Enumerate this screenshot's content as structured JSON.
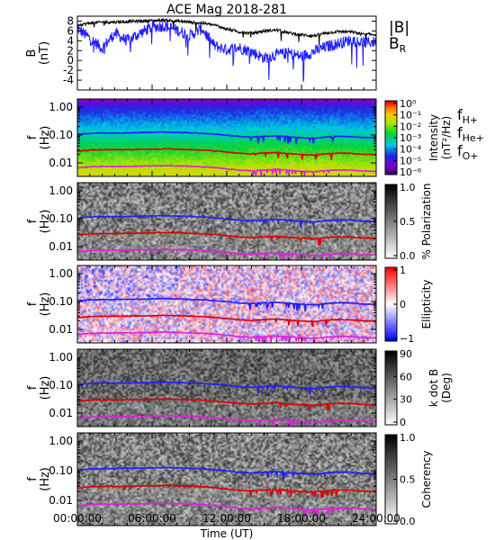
{
  "chart_data": [
    {
      "type": "line",
      "title": "ACE Mag 2018-281",
      "ylabel": "B",
      "yunit": "(nT)",
      "ylim": [
        -6,
        9
      ],
      "yticks": [
        8,
        6,
        4,
        2,
        0,
        -2,
        -4
      ],
      "x_hours": [
        0,
        1,
        2,
        3,
        4,
        5,
        6,
        7,
        8,
        9,
        10,
        11,
        12,
        13,
        14,
        15,
        16,
        17,
        18,
        19,
        20,
        21,
        22,
        23,
        24
      ],
      "series": [
        {
          "name": "|B|",
          "color": "#000000",
          "values": [
            7.2,
            7.6,
            7.8,
            7.8,
            7.9,
            8.0,
            8.1,
            8.2,
            8.0,
            7.8,
            7.6,
            7.2,
            6.4,
            5.8,
            5.5,
            6.0,
            6.2,
            5.6,
            5.2,
            5.0,
            5.6,
            5.9,
            5.8,
            5.3,
            5.3
          ]
        },
        {
          "name": "BR",
          "sub": "R",
          "label": "B",
          "color": "#1f1fff",
          "values": [
            6.5,
            4.5,
            2.5,
            5.5,
            4.0,
            5.5,
            6.8,
            7.0,
            6.2,
            5.0,
            6.5,
            3.0,
            2.2,
            2.6,
            1.8,
            0.5,
            1.2,
            1.5,
            0.8,
            1.8,
            2.8,
            3.5,
            4.2,
            3.6,
            3.8
          ]
        }
      ]
    },
    {
      "type": "heatmap",
      "ylabel": "f",
      "yunit": "(Hz)",
      "yscale": "log",
      "yticks": [
        "1.00",
        "0.10",
        "0.01"
      ],
      "colorbar": {
        "label": "Intensity",
        "unit": "(nT²/Hz)",
        "ticks": [
          "10⁰",
          "10⁻¹",
          "10⁻²",
          "10⁻³",
          "10⁻⁴",
          "10⁻⁵",
          "10⁻⁶"
        ],
        "palette": "rainbow"
      },
      "legend": [
        {
          "name": "f",
          "sub": "H+",
          "color": "#1f1fff"
        },
        {
          "name": "f",
          "sub": "He+",
          "color": "#e00000"
        },
        {
          "name": "f",
          "sub": "O+",
          "color": "#e020e0"
        }
      ]
    },
    {
      "type": "heatmap",
      "ylabel": "f",
      "yunit": "(Hz)",
      "yscale": "log",
      "yticks": [
        "1.00",
        "0.10",
        "0.01"
      ],
      "colorbar": {
        "label": "% Polarization",
        "ticks": [
          "1.0",
          "0.5",
          "0.0"
        ],
        "palette": "gray"
      }
    },
    {
      "type": "heatmap",
      "ylabel": "f",
      "yunit": "(Hz)",
      "yscale": "log",
      "yticks": [
        "1.00",
        "0.10",
        "0.01"
      ],
      "colorbar": {
        "label": "Ellipticity",
        "ticks": [
          "1",
          "0",
          "−1"
        ],
        "palette": "bwr"
      }
    },
    {
      "type": "heatmap",
      "ylabel": "f",
      "yunit": "(Hz)",
      "yscale": "log",
      "yticks": [
        "1.00",
        "0.10",
        "0.01"
      ],
      "colorbar": {
        "label": "k dot B",
        "unit": "(Deg)",
        "ticks": [
          "90",
          "60",
          "30",
          "0"
        ],
        "palette": "gray"
      }
    },
    {
      "type": "heatmap",
      "ylabel": "f",
      "yunit": "(Hz)",
      "yscale": "log",
      "yticks": [
        "1.00",
        "0.10",
        "0.01"
      ],
      "colorbar": {
        "label": "Coherency",
        "ticks": [
          "1.0",
          "0.5",
          "0.0"
        ],
        "palette": "gray"
      }
    }
  ],
  "gyrofrequencies": {
    "x_hours": [
      0,
      1,
      2,
      3,
      4,
      5,
      6,
      7,
      8,
      9,
      10,
      11,
      12,
      13,
      14,
      15,
      16,
      17,
      18,
      19,
      20,
      21,
      22,
      23,
      24
    ],
    "fH_hz": [
      0.105,
      0.115,
      0.118,
      0.118,
      0.12,
      0.122,
      0.125,
      0.128,
      0.124,
      0.12,
      0.115,
      0.108,
      0.098,
      0.088,
      0.084,
      0.09,
      0.094,
      0.086,
      0.08,
      0.076,
      0.085,
      0.09,
      0.088,
      0.081,
      0.08
    ],
    "fHe_hz": [
      0.026,
      0.029,
      0.0295,
      0.0295,
      0.03,
      0.0305,
      0.031,
      0.032,
      0.031,
      0.03,
      0.029,
      0.027,
      0.0245,
      0.022,
      0.021,
      0.0225,
      0.0235,
      0.0215,
      0.02,
      0.019,
      0.0212,
      0.0225,
      0.022,
      0.0202,
      0.02
    ],
    "fO_hz": [
      0.0066,
      0.0072,
      0.0074,
      0.0074,
      0.0075,
      0.0076,
      0.0078,
      0.008,
      0.0078,
      0.0075,
      0.0072,
      0.0068,
      0.0061,
      0.0055,
      0.0052,
      0.0056,
      0.0059,
      0.0054,
      0.005,
      0.0048,
      0.0053,
      0.0056,
      0.0055,
      0.0051,
      0.005
    ]
  },
  "xaxis": {
    "label": "Time (UT)",
    "range_hours": [
      0,
      24
    ],
    "ticks": [
      {
        "hour": 0,
        "label": "00:00:00"
      },
      {
        "hour": 6,
        "label": "06:00:00"
      },
      {
        "hour": 12,
        "label": "12:00:00"
      },
      {
        "hour": 18,
        "label": "18:00:00"
      },
      {
        "hour": 24,
        "label": "24:00:00"
      }
    ]
  }
}
